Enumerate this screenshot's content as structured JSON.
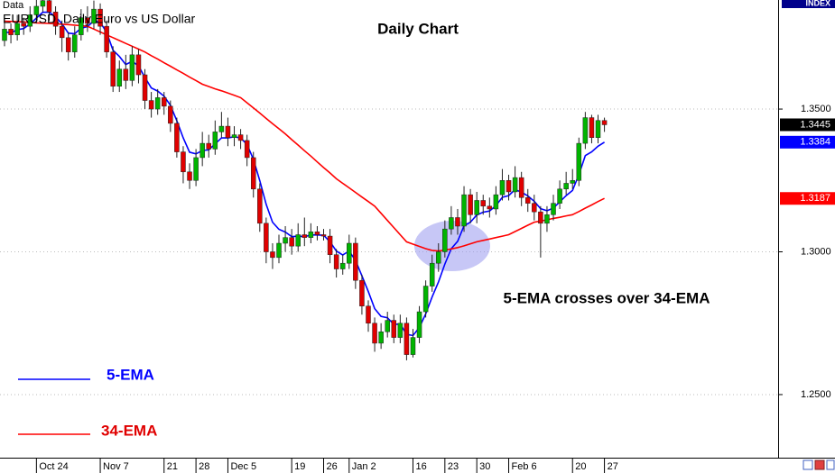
{
  "chart_data": {
    "type": "candlestick",
    "title": "Daily Chart",
    "header": "EURUSD, Daily  Euro vs US Dollar",
    "header_top": "Data",
    "corner_label": "INDEX",
    "annotation": "5-EMA crosses over 34-EMA",
    "up_color": "#00b400",
    "down_color": "#e00000",
    "ylim": [
      1.2279,
      1.3882
    ],
    "yticks": [
      {
        "value": 1.25,
        "label": "1.2500"
      },
      {
        "value": 1.3,
        "label": "1.3000"
      },
      {
        "value": 1.35,
        "label": "1.3500"
      }
    ],
    "grid": true,
    "categories": [
      null,
      null,
      null,
      null,
      null,
      "Oct 24",
      null,
      null,
      null,
      null,
      null,
      null,
      null,
      null,
      null,
      "Nov 7",
      null,
      null,
      null,
      null,
      null,
      null,
      null,
      null,
      null,
      "21",
      null,
      null,
      null,
      null,
      "28",
      null,
      null,
      null,
      null,
      "Dec 5",
      null,
      null,
      null,
      null,
      null,
      null,
      null,
      null,
      null,
      "19",
      null,
      null,
      null,
      null,
      "26",
      null,
      null,
      null,
      "Jan 2",
      null,
      null,
      null,
      null,
      null,
      null,
      null,
      null,
      null,
      "16",
      null,
      null,
      null,
      null,
      "23",
      null,
      null,
      null,
      null,
      "30",
      null,
      null,
      null,
      null,
      "Feb 6",
      null,
      null,
      null,
      null,
      null,
      null,
      null,
      null,
      null,
      "20",
      null,
      null,
      null,
      null,
      "27"
    ],
    "open": [
      1.374,
      1.378,
      1.376,
      1.38,
      1.379,
      1.383,
      1.386,
      1.388,
      1.384,
      1.379,
      1.375,
      1.37,
      1.376,
      1.382,
      1.38,
      1.385,
      1.379,
      1.37,
      1.358,
      1.364,
      1.36,
      1.369,
      1.362,
      1.353,
      1.35,
      1.354,
      1.351,
      1.345,
      1.335,
      1.328,
      1.325,
      1.333,
      1.338,
      1.336,
      1.342,
      1.344,
      1.34,
      1.341,
      1.339,
      1.333,
      1.322,
      1.31,
      1.3,
      1.298,
      1.303,
      1.305,
      1.302,
      1.306,
      1.305,
      1.307,
      1.306,
      1.3055,
      1.299,
      1.294,
      1.296,
      1.303,
      1.29,
      1.281,
      1.275,
      1.268,
      1.272,
      1.276,
      1.27,
      1.275,
      1.264,
      1.27,
      1.279,
      1.288,
      1.296,
      1.3,
      1.308,
      1.312,
      1.309,
      1.32,
      1.313,
      1.318,
      1.316,
      1.315,
      1.32,
      1.325,
      1.321,
      1.326,
      1.319,
      1.317,
      1.314,
      1.31,
      1.313,
      1.317,
      1.322,
      1.324,
      1.325,
      1.338,
      1.347,
      1.34,
      1.346
    ],
    "high": [
      1.382,
      1.38,
      1.383,
      1.382,
      1.386,
      1.389,
      1.39,
      1.3895,
      1.386,
      1.381,
      1.377,
      1.379,
      1.385,
      1.386,
      1.388,
      1.387,
      1.381,
      1.372,
      1.367,
      1.369,
      1.372,
      1.371,
      1.364,
      1.356,
      1.357,
      1.356,
      1.353,
      1.347,
      1.337,
      1.331,
      1.336,
      1.342,
      1.341,
      1.346,
      1.349,
      1.347,
      1.344,
      1.343,
      1.341,
      1.335,
      1.324,
      1.312,
      1.303,
      1.306,
      1.309,
      1.308,
      1.31,
      1.312,
      1.31,
      1.309,
      1.308,
      1.308,
      1.301,
      1.299,
      1.306,
      1.305,
      1.292,
      1.283,
      1.277,
      1.275,
      1.279,
      1.278,
      1.278,
      1.277,
      1.273,
      1.281,
      1.29,
      1.299,
      1.303,
      1.311,
      1.316,
      1.315,
      1.323,
      1.322,
      1.321,
      1.32,
      1.319,
      1.323,
      1.329,
      1.327,
      1.33,
      1.328,
      1.322,
      1.32,
      1.316,
      1.316,
      1.32,
      1.325,
      1.328,
      1.329,
      1.34,
      1.349,
      1.348,
      1.348,
      1.347
    ],
    "low": [
      1.372,
      1.373,
      1.374,
      1.376,
      1.377,
      1.38,
      1.384,
      1.381,
      1.376,
      1.37,
      1.367,
      1.368,
      1.374,
      1.377,
      1.378,
      1.376,
      1.368,
      1.356,
      1.356,
      1.357,
      1.358,
      1.359,
      1.35,
      1.347,
      1.348,
      1.348,
      1.342,
      1.333,
      1.324,
      1.322,
      1.323,
      1.33,
      1.333,
      1.334,
      1.34,
      1.337,
      1.337,
      1.336,
      1.33,
      1.319,
      1.307,
      1.296,
      1.294,
      1.296,
      1.3,
      1.299,
      1.3,
      1.302,
      1.303,
      1.304,
      1.304,
      1.296,
      1.291,
      1.292,
      1.294,
      1.287,
      1.278,
      1.272,
      1.265,
      1.266,
      1.27,
      1.268,
      1.268,
      1.262,
      1.263,
      1.268,
      1.277,
      1.286,
      1.293,
      1.298,
      1.306,
      1.306,
      1.307,
      1.31,
      1.31,
      1.313,
      1.312,
      1.313,
      1.318,
      1.318,
      1.319,
      1.316,
      1.314,
      1.311,
      1.298,
      1.307,
      1.311,
      1.315,
      1.32,
      1.322,
      1.323,
      1.336,
      1.338,
      1.338,
      1.342
    ],
    "close": [
      1.378,
      1.376,
      1.38,
      1.379,
      1.383,
      1.386,
      1.388,
      1.384,
      1.379,
      1.375,
      1.37,
      1.376,
      1.382,
      1.38,
      1.385,
      1.379,
      1.37,
      1.358,
      1.364,
      1.36,
      1.369,
      1.362,
      1.353,
      1.35,
      1.354,
      1.351,
      1.345,
      1.335,
      1.328,
      1.325,
      1.333,
      1.338,
      1.336,
      1.342,
      1.344,
      1.34,
      1.341,
      1.339,
      1.333,
      1.322,
      1.31,
      1.3,
      1.298,
      1.303,
      1.305,
      1.302,
      1.306,
      1.305,
      1.307,
      1.306,
      1.3055,
      1.299,
      1.294,
      1.296,
      1.303,
      1.29,
      1.281,
      1.275,
      1.268,
      1.272,
      1.276,
      1.27,
      1.275,
      1.264,
      1.27,
      1.279,
      1.288,
      1.296,
      1.3,
      1.308,
      1.312,
      1.309,
      1.32,
      1.313,
      1.318,
      1.316,
      1.315,
      1.32,
      1.325,
      1.321,
      1.326,
      1.319,
      1.317,
      1.314,
      1.31,
      1.313,
      1.317,
      1.322,
      1.324,
      1.325,
      1.338,
      1.347,
      1.34,
      1.346,
      1.3445
    ],
    "lines": [
      {
        "name": "5-EMA",
        "color": "#0000ff",
        "values": [
          1.377,
          1.3767,
          1.3778,
          1.3782,
          1.3798,
          1.3819,
          1.3839,
          1.3839,
          1.3823,
          1.3799,
          1.3766,
          1.3764,
          1.3783,
          1.3789,
          1.3809,
          1.3803,
          1.3769,
          1.3706,
          1.3684,
          1.3656,
          1.3667,
          1.3651,
          1.3611,
          1.3574,
          1.3563,
          1.3545,
          1.3513,
          1.3459,
          1.3399,
          1.3349,
          1.3343,
          1.3355,
          1.3357,
          1.3378,
          1.3399,
          1.3399,
          1.3403,
          1.3399,
          1.3376,
          1.3324,
          1.3249,
          1.3166,
          1.3104,
          1.3079,
          1.3069,
          1.3053,
          1.3055,
          1.3053,
          1.3059,
          1.3059,
          1.3058,
          1.3035,
          1.3003,
          1.2989,
          1.3003,
          1.2969,
          1.2916,
          1.2861,
          1.2801,
          1.2774,
          1.2769,
          1.2746,
          1.2747,
          1.2711,
          1.2707,
          1.2735,
          1.2783,
          1.2842,
          1.2895,
          1.2957,
          1.3011,
          1.3037,
          1.3091,
          1.3104,
          1.3129,
          1.3139,
          1.3143,
          1.3162,
          1.3191,
          1.3197,
          1.3218,
          1.3209,
          1.3196,
          1.3177,
          1.3151,
          1.3144,
          1.3153,
          1.3175,
          1.3197,
          1.3215,
          1.327,
          1.3337,
          1.335,
          1.337,
          1.3384
        ]
      },
      {
        "name": "34-EMA",
        "color": "#ff0000",
        "values": [
          1.3808,
          1.3807,
          1.3806,
          1.3805,
          1.3803,
          1.3802,
          1.3801,
          1.38,
          1.3799,
          1.3797,
          1.3796,
          1.3794,
          1.3792,
          1.379,
          1.378,
          1.377,
          1.376,
          1.375,
          1.374,
          1.373,
          1.372,
          1.371,
          1.37,
          1.3687,
          1.3675,
          1.3662,
          1.365,
          1.3637,
          1.3625,
          1.3612,
          1.36,
          1.3587,
          1.3579,
          1.3571,
          1.3564,
          1.3556,
          1.3548,
          1.354,
          1.3522,
          1.3504,
          1.3486,
          1.3467,
          1.3449,
          1.3431,
          1.3413,
          1.3393,
          1.3374,
          1.3354,
          1.3335,
          1.3315,
          1.3295,
          1.3276,
          1.3256,
          1.324,
          1.3224,
          1.3208,
          1.3192,
          1.3176,
          1.316,
          1.3135,
          1.311,
          1.3085,
          1.306,
          1.3035,
          1.3027,
          1.3019,
          1.3011,
          1.3005,
          1.3003,
          1.3006,
          1.301,
          1.3015,
          1.3021,
          1.3028,
          1.3035,
          1.304,
          1.3045,
          1.305,
          1.3055,
          1.306,
          1.3071,
          1.3082,
          1.3093,
          1.3104,
          1.3108,
          1.3112,
          1.3117,
          1.3121,
          1.3126,
          1.313,
          1.3141,
          1.3153,
          1.3164,
          1.3176,
          1.3187
        ]
      }
    ]
  }
}
